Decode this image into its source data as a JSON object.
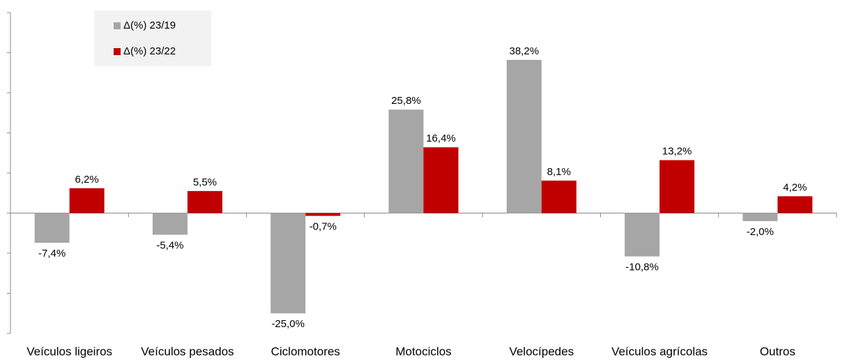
{
  "chart_data": {
    "type": "bar",
    "categories": [
      "Veículos ligeiros",
      "Veículos pesados",
      "Ciclomotores",
      "Motociclos",
      "Velocípedes",
      "Veículos agrícolas",
      "Outros"
    ],
    "series": [
      {
        "name": "Δ(%) 23/19",
        "color": "#a6a6a6",
        "values": [
          -7.4,
          -5.4,
          -25.0,
          25.8,
          38.2,
          -10.8,
          -2.0
        ],
        "value_labels": [
          "-7,4%",
          "-5,4%",
          "-25,0%",
          "25,8%",
          "38,2%",
          "-10,8%",
          "-2,0%"
        ]
      },
      {
        "name": "Δ(%) 23/22",
        "color": "#c00000",
        "values": [
          6.2,
          5.5,
          -0.7,
          16.4,
          8.1,
          13.2,
          4.2
        ],
        "value_labels": [
          "6,2%",
          "5,5%",
          "-0,7%",
          "16,4%",
          "8,1%",
          "13,2%",
          "4,2%"
        ]
      }
    ],
    "ylim": [
      -30,
      50
    ],
    "yticks": [
      -30,
      -20,
      -10,
      0,
      10,
      20,
      30,
      40,
      50
    ],
    "legend": "top-left"
  }
}
